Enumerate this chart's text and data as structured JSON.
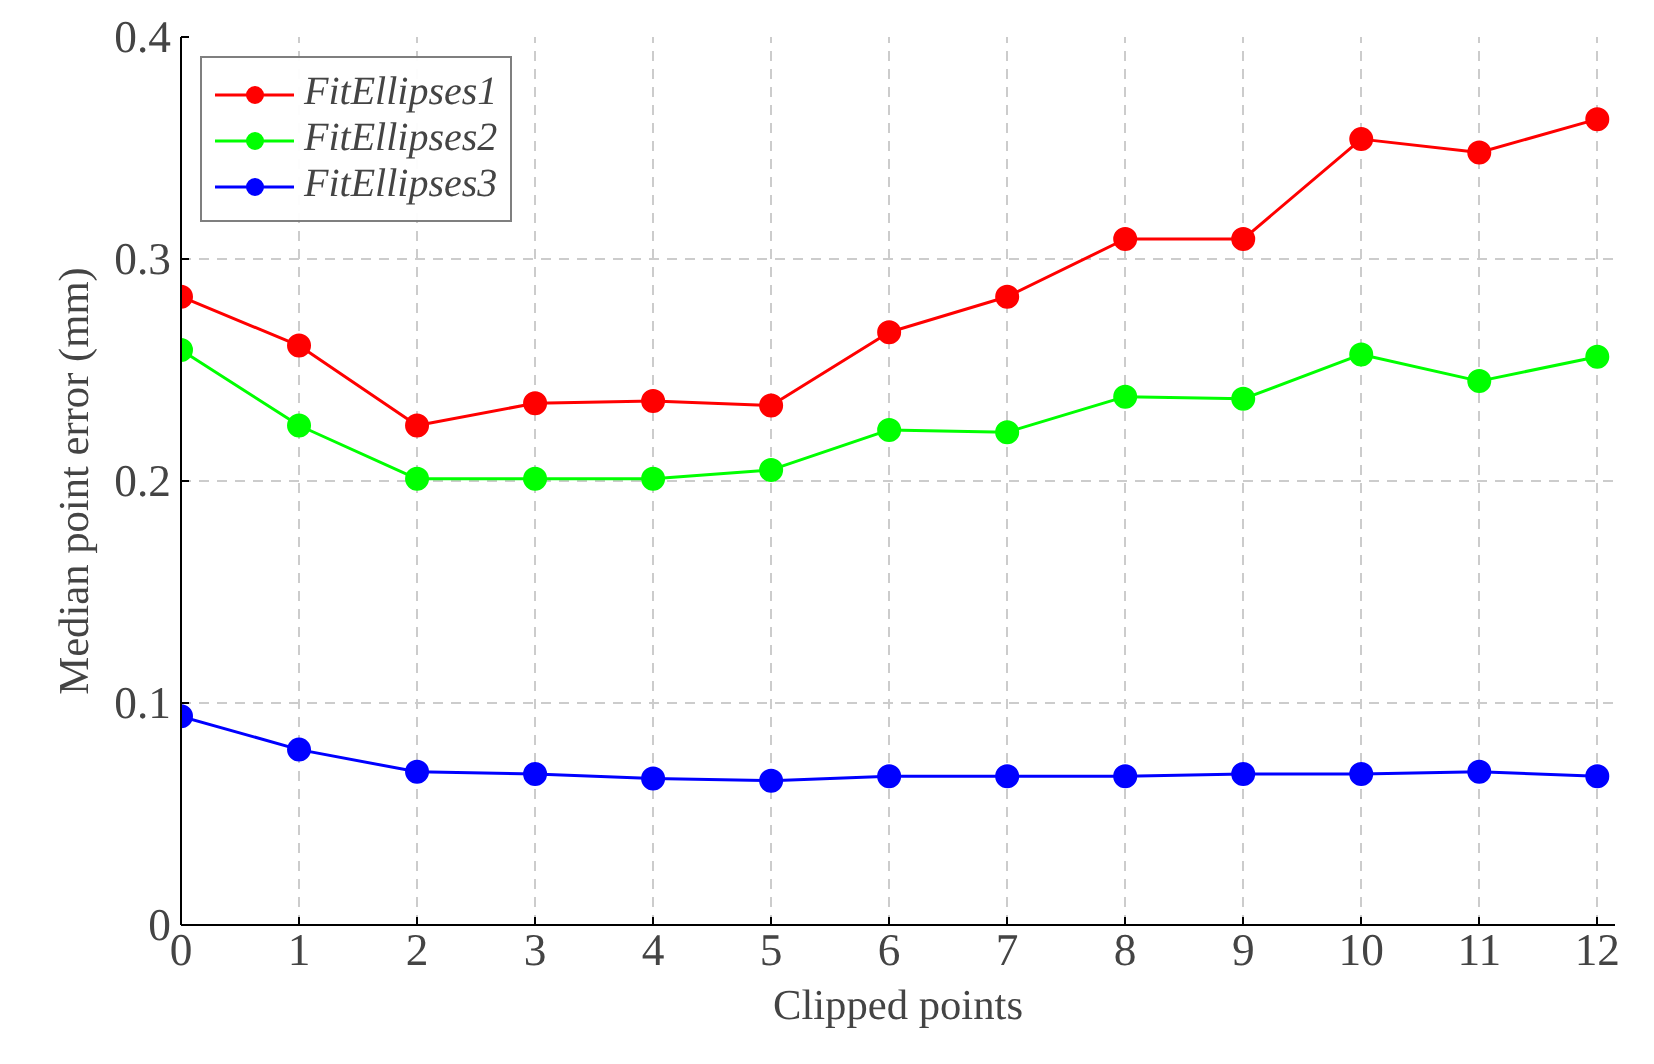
{
  "chart_data": {
    "type": "line",
    "xlabel": "Clipped points",
    "ylabel": "Median point error (mm)",
    "x": [
      0,
      1,
      2,
      3,
      4,
      5,
      6,
      7,
      8,
      9,
      10,
      11,
      12
    ],
    "series": [
      {
        "name": "FitEllipses1",
        "color": "#ff0000",
        "values": [
          0.283,
          0.261,
          0.225,
          0.235,
          0.236,
          0.234,
          0.267,
          0.283,
          0.309,
          0.309,
          0.354,
          0.348,
          0.363
        ]
      },
      {
        "name": "FitEllipses2",
        "color": "#00ff00",
        "values": [
          0.259,
          0.225,
          0.201,
          0.201,
          0.201,
          0.205,
          0.223,
          0.222,
          0.238,
          0.237,
          0.257,
          0.245,
          0.256
        ]
      },
      {
        "name": "FitEllipses3",
        "color": "#0000ff",
        "values": [
          0.094,
          0.079,
          0.069,
          0.068,
          0.066,
          0.065,
          0.067,
          0.067,
          0.067,
          0.068,
          0.068,
          0.069,
          0.067
        ]
      }
    ],
    "xlim": [
      0,
      12.15
    ],
    "ylim": [
      0,
      0.4
    ],
    "xticks": [
      0,
      1,
      2,
      3,
      4,
      5,
      6,
      7,
      8,
      9,
      10,
      11,
      12
    ],
    "yticks": [
      0,
      0.1,
      0.2,
      0.3,
      0.4
    ],
    "grid": true,
    "legend": "top left",
    "marker": "circle",
    "line_style": "solid"
  }
}
